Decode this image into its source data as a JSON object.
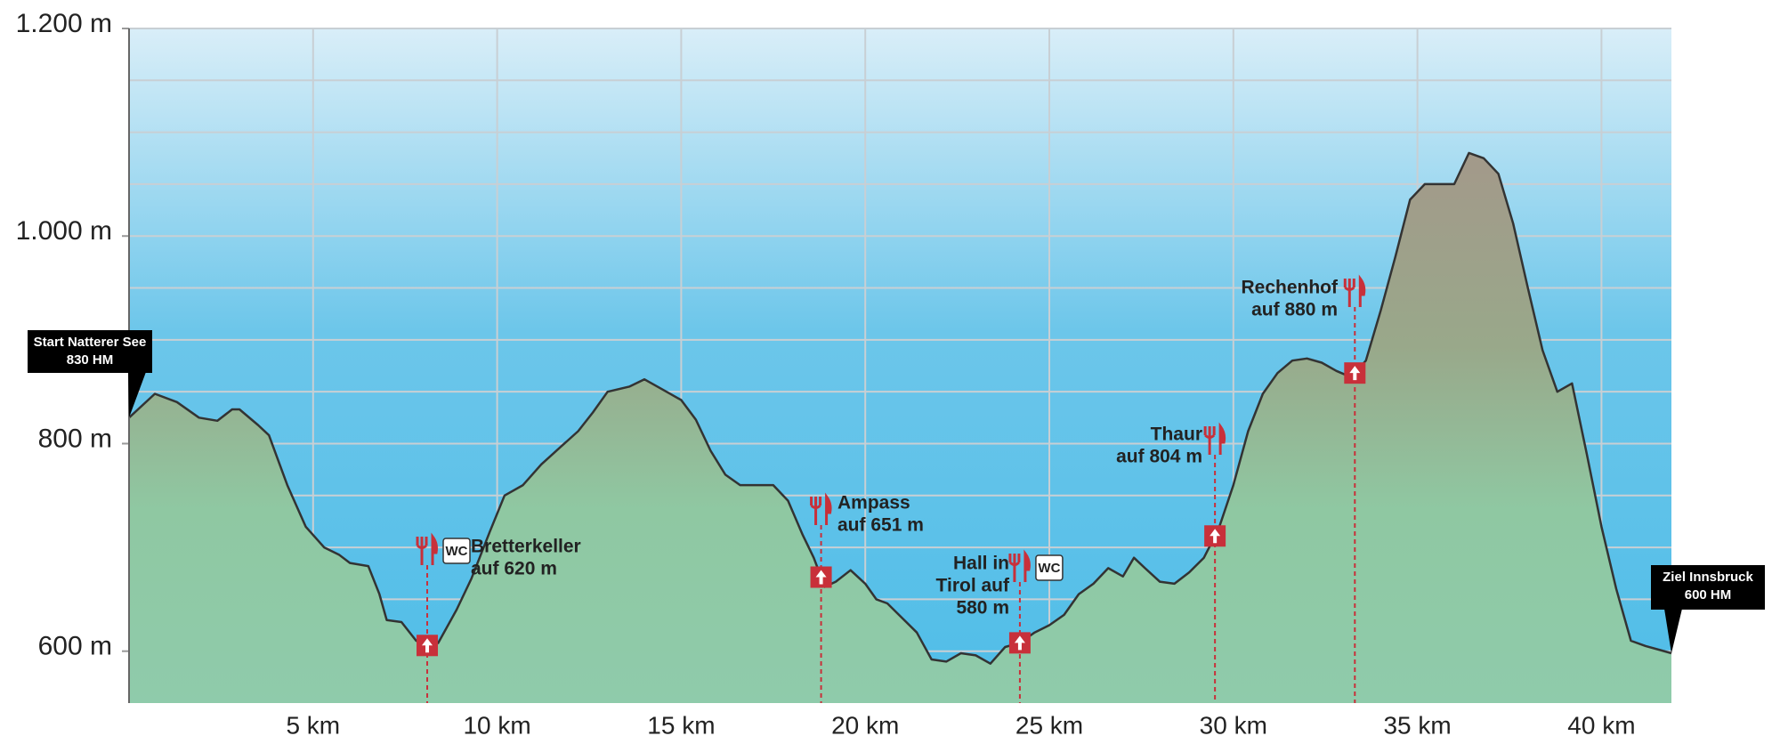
{
  "chart_data": {
    "type": "area",
    "xticks": [
      {
        "value": 5,
        "label": "5 km"
      },
      {
        "value": 10,
        "label": "10 km"
      },
      {
        "value": 15,
        "label": "15 km"
      },
      {
        "value": 20,
        "label": "20 km"
      },
      {
        "value": 25,
        "label": "25 km"
      },
      {
        "value": 30,
        "label": "30 km"
      },
      {
        "value": 35,
        "label": "35 km"
      },
      {
        "value": 40,
        "label": "40 km"
      }
    ],
    "yticks": [
      {
        "value": 600,
        "label": "600 m"
      },
      {
        "value": 800,
        "label": "800 m"
      },
      {
        "value": 1000,
        "label": "1.000 m"
      },
      {
        "value": 1200,
        "label": "1.200 m"
      }
    ],
    "xlim": [
      0,
      41.9
    ],
    "ylim": [
      550,
      1200
    ],
    "grid": true,
    "grid_step": 50,
    "series": [
      {
        "color": "#333333",
        "x": [
          0,
          0.7,
          1.3,
          1.9,
          2.4,
          2.8,
          3.0,
          3.5,
          3.8,
          4.3,
          4.8,
          5.3,
          5.7,
          6.0,
          6.5,
          6.8,
          7.0,
          7.4,
          7.8,
          8.2,
          8.4,
          8.9,
          9.3,
          9.8,
          10.2,
          10.7,
          11.2,
          11.7,
          12.2,
          12.6,
          13.0,
          13.6,
          14.0,
          14.5,
          15.0,
          15.4,
          15.8,
          16.2,
          16.6,
          17.0,
          17.5,
          17.9,
          18.3,
          18.6,
          18.9,
          19.2,
          19.6,
          20.0,
          20.3,
          20.6,
          21.0,
          21.4,
          21.8,
          22.2,
          22.6,
          23.0,
          23.4,
          23.8,
          24.2,
          24.6,
          25.0,
          25.4,
          25.8,
          26.2,
          26.6,
          27.0,
          27.3,
          27.6,
          28.0,
          28.4,
          28.8,
          29.2,
          29.6,
          30.0,
          30.4,
          30.8,
          31.2,
          31.6,
          32.0,
          32.4,
          32.8,
          33.2,
          33.6,
          34.0,
          34.4,
          34.8,
          35.2,
          35.6,
          36.0,
          36.4,
          36.8,
          37.2,
          37.6,
          38.0,
          38.4,
          38.8,
          39.2,
          39.6,
          40.0,
          40.4,
          40.8,
          41.2,
          41.6,
          41.9
        ],
        "values": [
          825,
          848,
          840,
          825,
          822,
          833,
          833,
          818,
          808,
          760,
          720,
          700,
          693,
          685,
          682,
          655,
          630,
          628,
          610,
          604,
          608,
          640,
          670,
          715,
          750,
          760,
          780,
          796,
          812,
          830,
          850,
          855,
          862,
          852,
          842,
          823,
          793,
          770,
          760,
          760,
          760,
          745,
          712,
          690,
          662,
          667,
          678,
          665,
          650,
          646,
          632,
          618,
          592,
          590,
          598,
          596,
          588,
          604,
          608,
          618,
          625,
          635,
          655,
          665,
          680,
          672,
          690,
          680,
          667,
          665,
          676,
          690,
          718,
          760,
          812,
          848,
          868,
          880,
          882,
          878,
          870,
          864,
          880,
          928,
          980,
          1035,
          1050,
          1050,
          1050,
          1080,
          1075,
          1060,
          1012,
          950,
          890,
          850,
          858,
          790,
          720,
          660,
          610,
          605,
          601,
          598
        ]
      }
    ],
    "start": {
      "lines": [
        "Start Natterer See",
        "830 HM"
      ]
    },
    "end": {
      "lines": [
        "Ziel Innsbruck",
        "600 HM"
      ]
    },
    "stations": [
      {
        "km": 8.1,
        "lines": [
          "Bretterkeller",
          "auf 620 m"
        ],
        "amenities": [
          "WC"
        ]
      },
      {
        "km": 18.8,
        "lines": [
          "Ampass",
          "auf 651 m"
        ]
      },
      {
        "km": 24.2,
        "lines": [
          "Hall in",
          "Tirol auf",
          "580 m"
        ],
        "amenities": [
          "WC"
        ]
      },
      {
        "km": 29.5,
        "lines": [
          "Thaur",
          "auf 804 m"
        ]
      },
      {
        "km": 33.3,
        "lines": [
          "Rechenhof",
          "auf 880 m"
        ]
      }
    ]
  }
}
